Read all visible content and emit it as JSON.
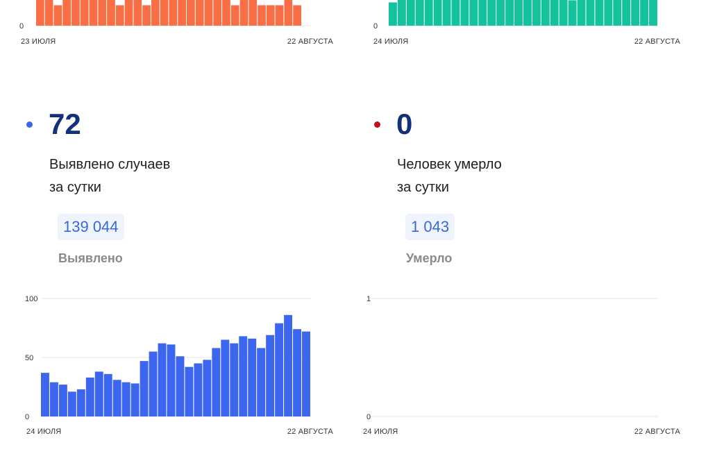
{
  "chart_data": [
    {
      "type": "bar",
      "color": "#fa6e46",
      "x_start_label": "23 июля",
      "x_end_label": "22 августа",
      "y_tick_labels": [
        "0"
      ],
      "values": [
        1,
        1,
        0.5,
        1,
        1,
        1,
        1,
        1,
        1,
        0.5,
        1,
        1,
        0.5,
        1,
        1,
        1,
        1,
        1,
        1,
        1,
        1,
        1,
        0.5,
        1,
        1,
        0.5,
        0.5,
        0.5,
        1,
        0.5
      ],
      "ylim": [
        0,
        1
      ]
    },
    {
      "type": "bar",
      "color": "#14c39e",
      "x_start_label": "24 июля",
      "x_end_label": "22 августа",
      "y_tick_labels": [
        "0"
      ],
      "values": [
        0.55,
        0.9,
        0.95,
        0.95,
        1,
        1,
        1,
        0.75,
        0.85,
        1,
        1,
        1,
        1,
        1,
        1,
        1,
        1,
        1,
        1,
        0.65,
        0.6,
        0.7,
        1,
        1,
        1,
        1,
        1,
        1,
        1,
        1
      ],
      "ylim": [
        0,
        1
      ]
    },
    {
      "type": "bar",
      "color": "#3d66f0",
      "x_start_label": "24 июля",
      "x_end_label": "22 августа",
      "y_tick_labels": [
        "0",
        "50",
        "100"
      ],
      "values": [
        37,
        29,
        27,
        21,
        23,
        33,
        38,
        36,
        31,
        29,
        28,
        47,
        55,
        62,
        61,
        51,
        42,
        45,
        48,
        58,
        65,
        62,
        68,
        66,
        58,
        69,
        79,
        86,
        74,
        72
      ],
      "ylim": [
        0,
        100
      ]
    },
    {
      "type": "bar",
      "color": "#c0101b",
      "x_start_label": "24 июля",
      "x_end_label": "22 августа",
      "y_tick_labels": [
        "0",
        "1"
      ],
      "values": [
        0,
        0,
        0,
        0,
        0,
        0,
        0,
        0,
        0,
        0,
        0,
        0,
        0,
        0,
        0,
        0,
        0,
        0,
        0,
        0,
        0,
        0,
        0,
        0,
        0,
        0,
        0,
        0,
        0,
        0
      ],
      "ylim": [
        0,
        1
      ]
    }
  ],
  "stats": [
    {
      "dot_color": "#3d66f0",
      "value": "72",
      "desc_line1": "Выявлено случаев",
      "desc_line2": "за сутки",
      "total": "139 044",
      "total_label": "Выявлено"
    },
    {
      "dot_color": "#c0101b",
      "value": "0",
      "desc_line1": "Человек умерло",
      "desc_line2": "за сутки",
      "total": "1 043",
      "total_label": "Умерло"
    }
  ]
}
